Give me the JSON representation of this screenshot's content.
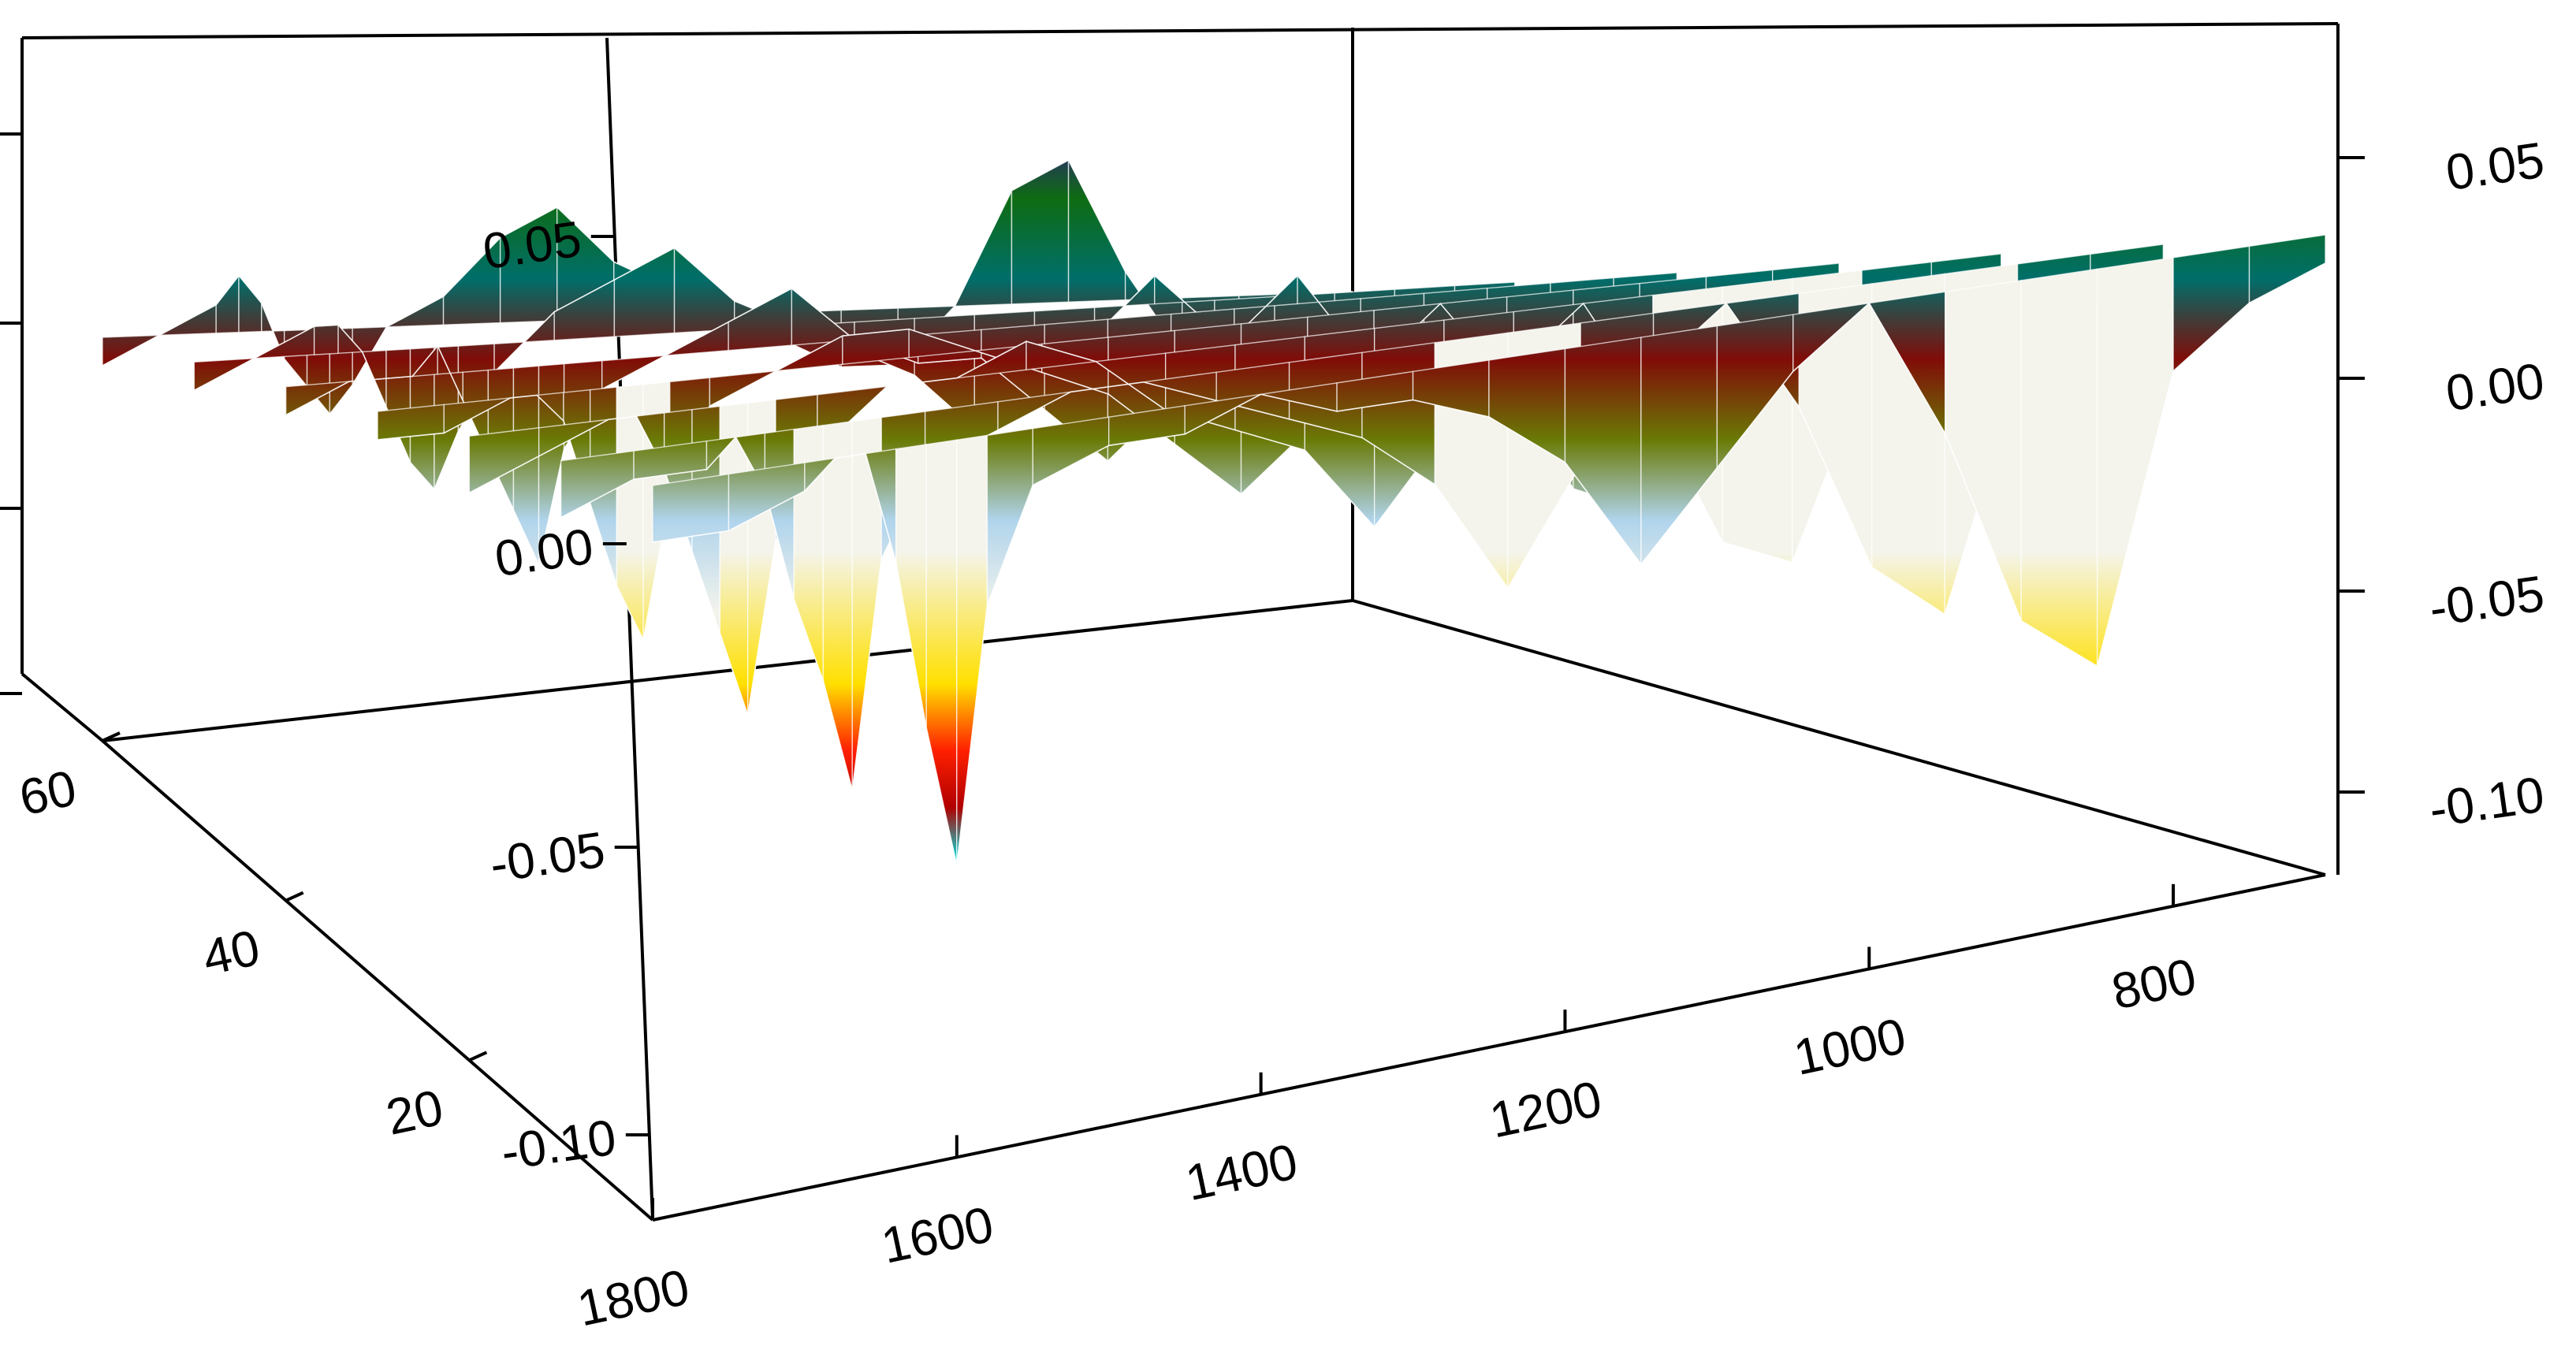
{
  "chart_data": {
    "type": "surface-3d",
    "title": "",
    "xlabel": "",
    "ylabel": "",
    "zlabel": "",
    "x_axis": {
      "range": [
        1800,
        700
      ],
      "ticks": [
        "1800",
        "1600",
        "1400",
        "1200",
        "1000",
        "800"
      ]
    },
    "y_axis": {
      "range": [
        0,
        60
      ],
      "ticks": [
        "20",
        "40",
        "60"
      ]
    },
    "z_axis_front": {
      "range": [
        -0.1,
        0.07
      ],
      "ticks": [
        "0.05",
        "0.00",
        "-0.05",
        "-0.10"
      ]
    },
    "z_axis_back": {
      "range": [
        -0.12,
        0.07
      ],
      "ticks": [
        "0.05",
        "0.00",
        "-0.05",
        "-0.10"
      ]
    },
    "grid": false,
    "colormap": [
      "#f0e040",
      "#f4f4ec",
      "#b0d4ec",
      "#6a7a06",
      "#800c08",
      "#006e6a",
      "#0e6c12",
      "#3a0a9a"
    ],
    "deep_colormap": [
      "#ff00ff",
      "#00ff40",
      "#00e0e0",
      "#ff0000",
      "#ffe000",
      "#c8c8c8"
    ],
    "x_samples": [
      1800,
      1750,
      1700,
      1680,
      1660,
      1640,
      1620,
      1600,
      1580,
      1550,
      1500,
      1450,
      1400,
      1350,
      1300,
      1250,
      1200,
      1150,
      1100,
      1050,
      1000,
      950,
      900,
      850,
      800,
      750,
      700
    ],
    "surface": [
      {
        "y": 0,
        "z": [
          0.0,
          0.0,
          0.01,
          0.02,
          0.02,
          -0.02,
          -0.08,
          -0.13,
          -0.04,
          0.0,
          0.01,
          0.01,
          0.02,
          0.01,
          0.01,
          0.0,
          -0.02,
          -0.06,
          -0.03,
          0.0,
          0.02,
          -0.03,
          -0.1,
          -0.12,
          -0.02,
          0.0,
          0.01
        ]
      },
      {
        "y": 10,
        "z": [
          0.0,
          0.01,
          0.01,
          0.02,
          0.0,
          -0.04,
          -0.07,
          -0.11,
          -0.03,
          0.0,
          0.01,
          0.02,
          0.02,
          0.01,
          0.0,
          -0.01,
          -0.03,
          -0.07,
          -0.03,
          0.0,
          0.02,
          -0.02,
          -0.08,
          -0.1,
          -0.02,
          0.0,
          0.01
        ]
      },
      {
        "y": 20,
        "z": [
          0.0,
          0.01,
          0.02,
          0.02,
          0.0,
          -0.03,
          -0.06,
          -0.09,
          -0.03,
          0.0,
          0.02,
          0.02,
          0.03,
          0.02,
          0.0,
          -0.01,
          -0.02,
          -0.05,
          -0.02,
          0.0,
          0.02,
          -0.02,
          -0.07,
          -0.08,
          -0.02,
          0.0,
          0.01
        ]
      },
      {
        "y": 30,
        "z": [
          0.01,
          0.01,
          0.02,
          0.02,
          0.01,
          -0.02,
          -0.05,
          -0.07,
          -0.02,
          0.01,
          0.02,
          0.03,
          0.03,
          0.02,
          0.01,
          0.0,
          -0.02,
          -0.04,
          -0.02,
          0.0,
          0.02,
          -0.01,
          -0.05,
          -0.06,
          -0.01,
          0.0,
          0.01
        ]
      },
      {
        "y": 40,
        "z": [
          0.01,
          0.02,
          0.02,
          0.03,
          0.01,
          -0.01,
          -0.03,
          -0.05,
          -0.01,
          0.01,
          0.02,
          0.03,
          0.04,
          0.02,
          0.01,
          0.01,
          -0.01,
          -0.03,
          -0.01,
          0.01,
          0.03,
          0.0,
          -0.04,
          -0.05,
          -0.01,
          0.0,
          0.01
        ]
      },
      {
        "y": 50,
        "z": [
          0.01,
          0.02,
          0.03,
          0.03,
          0.02,
          0.0,
          -0.02,
          -0.03,
          -0.01,
          0.01,
          0.03,
          0.04,
          0.05,
          0.03,
          0.02,
          0.01,
          0.0,
          -0.02,
          -0.01,
          0.01,
          0.03,
          0.01,
          -0.02,
          -0.03,
          0.0,
          0.01,
          0.01
        ]
      },
      {
        "y": 60,
        "z": [
          0.01,
          0.02,
          0.03,
          0.04,
          0.03,
          0.01,
          0.0,
          -0.01,
          0.0,
          0.02,
          0.03,
          0.05,
          0.06,
          0.04,
          0.03,
          0.02,
          0.01,
          0.0,
          0.0,
          0.02,
          0.06,
          0.07,
          0.03,
          0.0,
          0.01,
          0.02,
          0.02
        ]
      }
    ]
  }
}
